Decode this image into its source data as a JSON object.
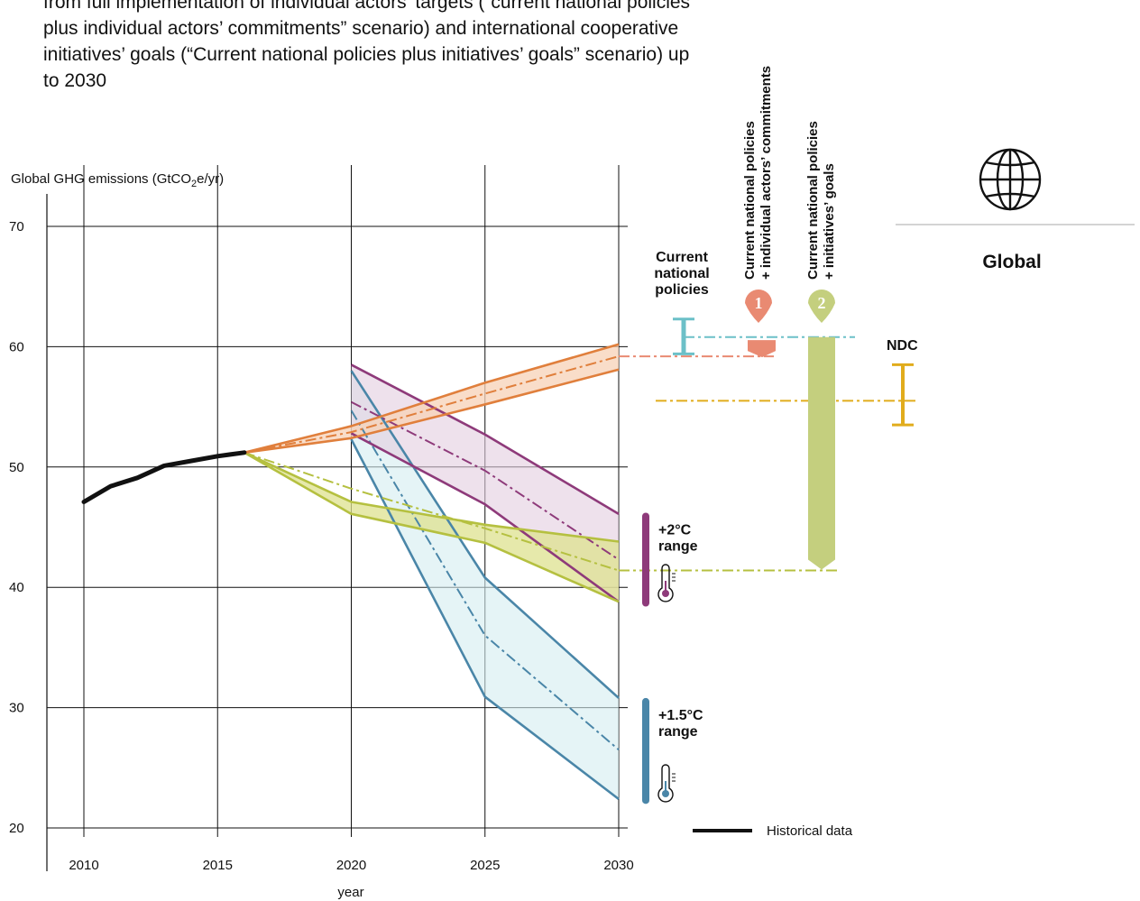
{
  "intro_text": "from full implementation of individual actors’ targets (“current national policies plus individual actors’ commitments” scenario) and international cooperative initiatives’ goals (“Current national policies plus initiatives’ goals” scenario) up to 2030",
  "region_label": "Global",
  "colors": {
    "historical": "#111111",
    "current_policies": "#e07f3c",
    "initiatives": "#b5c040",
    "two_degree": "#8e3a7a",
    "one_five_degree": "#4a86a8",
    "ndc": "#e1ac1c",
    "actors_commitments": "#e98a72",
    "initiatives_goals": "#c4cf7e",
    "current_policies_range": "#6cc0c8"
  },
  "chart_data": {
    "type": "line",
    "title": "",
    "ylabel": "Global GHG emissions (GtCO₂e/yr)",
    "ylabel_main": "Global GHG emissions (GtCO",
    "ylabel_sub": "2",
    "ylabel_tail": "e/yr)",
    "xlabel": "year",
    "xlim": [
      2010,
      2030
    ],
    "ylim": [
      20,
      70
    ],
    "x_ticks": [
      2010,
      2015,
      2020,
      2025,
      2030
    ],
    "y_ticks": [
      20,
      30,
      40,
      50,
      60,
      70
    ],
    "grid": true,
    "historical": {
      "name": "Historical data",
      "x": [
        2010,
        2011,
        2012,
        2013,
        2014,
        2015,
        2016
      ],
      "y": [
        47.1,
        48.4,
        49.1,
        50.1,
        50.5,
        50.9,
        51.2
      ]
    },
    "current_policies": {
      "x": [
        2016,
        2020,
        2025,
        2030
      ],
      "upper": [
        51.2,
        53.4,
        57.0,
        60.2
      ],
      "lower": [
        51.2,
        52.4,
        55.2,
        58.1
      ],
      "median": [
        51.2,
        52.9,
        56.1,
        59.2
      ]
    },
    "initiatives": {
      "x": [
        2016,
        2020,
        2025,
        2030
      ],
      "upper": [
        51.2,
        47.1,
        45.2,
        43.8
      ],
      "lower": [
        51.2,
        46.1,
        43.7,
        38.8
      ],
      "median": [
        51.2,
        48.2,
        44.9,
        41.4
      ]
    },
    "two_degree": {
      "x": [
        2020,
        2025,
        2030
      ],
      "upper": [
        58.5,
        52.7,
        46.1
      ],
      "lower": [
        52.8,
        46.9,
        38.8
      ],
      "median": [
        55.4,
        49.7,
        42.3
      ]
    },
    "one_five_degree": {
      "x": [
        2020,
        2025,
        2030
      ],
      "upper": [
        58.0,
        40.8,
        30.8
      ],
      "lower": [
        52.3,
        30.9,
        22.4
      ],
      "median": [
        54.7,
        36.0,
        26.5
      ]
    },
    "annotations": {
      "two_degree_label": "+2°C",
      "two_degree_label2": "range",
      "two_degree_range": [
        38.7,
        45.9
      ],
      "one_five_label": "+1.5°C",
      "one_five_label2": "range",
      "one_five_range": [
        22.3,
        30.5
      ],
      "current_policies_label": [
        "Current",
        "national",
        "policies"
      ],
      "current_policies_range": [
        59.4,
        62.3
      ],
      "current_policies_value": 60.8,
      "actors_commitments_label": [
        "Current national policies",
        "+ individual actors’ commitments"
      ],
      "actors_marker": "1",
      "actors_value": 59.2,
      "initiatives_goals_label": [
        "Current national policies",
        "+ initiatives’ goals"
      ],
      "initiatives_marker": "2",
      "initiatives_value": 41.4,
      "ndc_label": "NDC",
      "ndc_range": [
        53.5,
        58.5
      ],
      "ndc_value": 55.5,
      "legend_historical": "Historical data"
    }
  }
}
